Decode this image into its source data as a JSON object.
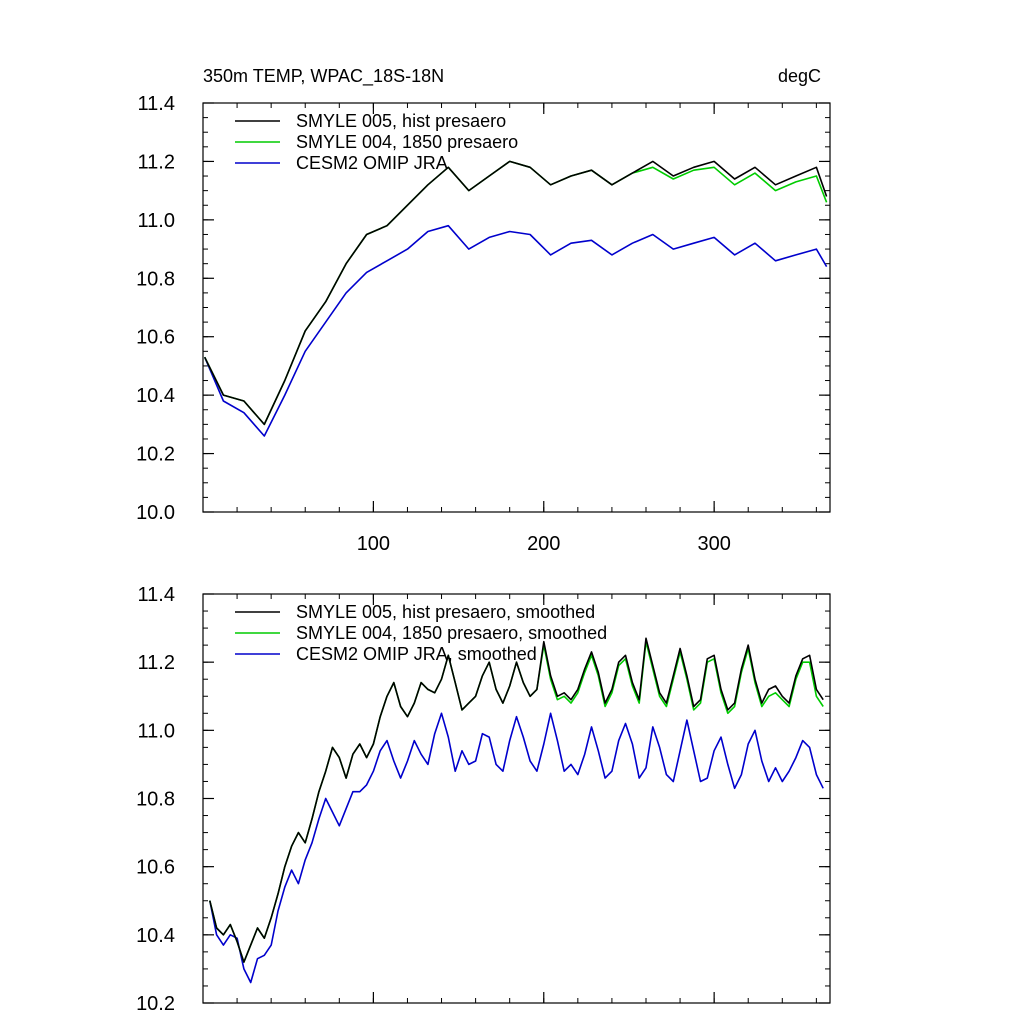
{
  "chart_data": [
    {
      "type": "line",
      "title": "350m TEMP, WPAC_18S-18N",
      "units": "degC",
      "xlabel": "",
      "ylabel": "",
      "xlim": [
        0,
        368
      ],
      "ylim": [
        10.0,
        11.4
      ],
      "x_ticks": [
        100,
        200,
        300
      ],
      "x_tick_labels": [
        "100",
        "200",
        "300"
      ],
      "y_ticks": [
        10.0,
        10.2,
        10.4,
        10.6,
        10.8,
        11.0,
        11.2,
        11.4
      ],
      "y_tick_labels": [
        "10.0",
        "10.2",
        "10.4",
        "10.6",
        "10.8",
        "11.0",
        "11.2",
        "11.4"
      ],
      "grid": false,
      "legend_position": "top-left",
      "x": [
        1,
        12,
        24,
        36,
        48,
        60,
        72,
        84,
        96,
        108,
        120,
        132,
        144,
        156,
        168,
        180,
        192,
        204,
        216,
        228,
        240,
        252,
        264,
        276,
        288,
        300,
        312,
        324,
        336,
        348,
        360,
        366
      ],
      "series": [
        {
          "name": "SMYLE 005, hist presaero",
          "color": "#000000",
          "values": [
            10.53,
            10.4,
            10.38,
            10.3,
            10.45,
            10.62,
            10.72,
            10.85,
            10.95,
            10.98,
            11.05,
            11.12,
            11.18,
            11.1,
            11.15,
            11.2,
            11.18,
            11.12,
            11.15,
            11.17,
            11.12,
            11.16,
            11.2,
            11.15,
            11.18,
            11.2,
            11.14,
            11.18,
            11.12,
            11.15,
            11.18,
            11.08
          ]
        },
        {
          "name": "SMYLE 004, 1850 presaero",
          "color": "#00cc00",
          "values": [
            10.53,
            10.4,
            10.38,
            10.3,
            10.45,
            10.62,
            10.72,
            10.85,
            10.95,
            10.98,
            11.05,
            11.12,
            11.18,
            11.1,
            11.15,
            11.2,
            11.18,
            11.12,
            11.15,
            11.17,
            11.12,
            11.16,
            11.18,
            11.14,
            11.17,
            11.18,
            11.12,
            11.16,
            11.1,
            11.13,
            11.15,
            11.06
          ]
        },
        {
          "name": "CESM2 OMIP JRA",
          "color": "#0000cc",
          "values": [
            10.53,
            10.38,
            10.34,
            10.26,
            10.4,
            10.55,
            10.65,
            10.75,
            10.82,
            10.86,
            10.9,
            10.96,
            10.98,
            10.9,
            10.94,
            10.96,
            10.95,
            10.88,
            10.92,
            10.93,
            10.88,
            10.92,
            10.95,
            10.9,
            10.92,
            10.94,
            10.88,
            10.92,
            10.86,
            10.88,
            10.9,
            10.84
          ]
        }
      ]
    },
    {
      "type": "line",
      "title": "",
      "units": "",
      "xlabel": "",
      "ylabel": "",
      "xlim": [
        0,
        368
      ],
      "ylim": [
        10.2,
        11.4
      ],
      "x_ticks": [
        100,
        200,
        300
      ],
      "x_tick_labels": [],
      "y_ticks": [
        10.2,
        10.4,
        10.6,
        10.8,
        11.0,
        11.2,
        11.4
      ],
      "y_tick_labels": [
        "10.2",
        "10.4",
        "10.6",
        "10.8",
        "11.0",
        "11.2",
        "11.4"
      ],
      "grid": false,
      "legend_position": "top-left",
      "x": [
        4,
        8,
        12,
        16,
        20,
        24,
        28,
        32,
        36,
        40,
        44,
        48,
        52,
        56,
        60,
        64,
        68,
        72,
        76,
        80,
        84,
        88,
        92,
        96,
        100,
        104,
        108,
        112,
        116,
        120,
        124,
        128,
        132,
        136,
        140,
        144,
        148,
        152,
        156,
        160,
        164,
        168,
        172,
        176,
        180,
        184,
        188,
        192,
        196,
        200,
        204,
        208,
        212,
        216,
        220,
        224,
        228,
        232,
        236,
        240,
        244,
        248,
        252,
        256,
        260,
        264,
        268,
        272,
        276,
        280,
        284,
        288,
        292,
        296,
        300,
        304,
        308,
        312,
        316,
        320,
        324,
        328,
        332,
        336,
        340,
        344,
        348,
        352,
        356,
        360,
        364
      ],
      "series": [
        {
          "name": "SMYLE 005, hist presaero, smoothed",
          "color": "#000000",
          "values": [
            10.5,
            10.42,
            10.4,
            10.43,
            10.38,
            10.32,
            10.37,
            10.42,
            10.39,
            10.45,
            10.52,
            10.6,
            10.66,
            10.7,
            10.67,
            10.74,
            10.82,
            10.88,
            10.95,
            10.92,
            10.86,
            10.93,
            10.96,
            10.92,
            10.96,
            11.04,
            11.1,
            11.14,
            11.07,
            11.04,
            11.08,
            11.14,
            11.12,
            11.11,
            11.15,
            11.22,
            11.14,
            11.06,
            11.08,
            11.1,
            11.16,
            11.2,
            11.12,
            11.08,
            11.13,
            11.2,
            11.14,
            11.1,
            11.12,
            11.26,
            11.16,
            11.1,
            11.11,
            11.09,
            11.12,
            11.18,
            11.23,
            11.17,
            11.08,
            11.12,
            11.2,
            11.22,
            11.14,
            11.09,
            11.27,
            11.19,
            11.11,
            11.08,
            11.16,
            11.24,
            11.16,
            11.07,
            11.09,
            11.21,
            11.22,
            11.12,
            11.06,
            11.08,
            11.18,
            11.25,
            11.15,
            11.08,
            11.12,
            11.13,
            11.1,
            11.08,
            11.16,
            11.21,
            11.22,
            11.12,
            11.09
          ]
        },
        {
          "name": "SMYLE 004, 1850 presaero, smoothed",
          "color": "#00cc00",
          "values": [
            10.5,
            10.42,
            10.4,
            10.43,
            10.38,
            10.32,
            10.37,
            10.42,
            10.39,
            10.45,
            10.52,
            10.6,
            10.66,
            10.7,
            10.67,
            10.74,
            10.82,
            10.88,
            10.95,
            10.92,
            10.86,
            10.93,
            10.96,
            10.92,
            10.96,
            11.04,
            11.1,
            11.14,
            11.07,
            11.04,
            11.08,
            11.14,
            11.12,
            11.11,
            11.15,
            11.22,
            11.14,
            11.06,
            11.08,
            11.1,
            11.16,
            11.2,
            11.12,
            11.08,
            11.13,
            11.2,
            11.14,
            11.1,
            11.12,
            11.25,
            11.15,
            11.09,
            11.1,
            11.08,
            11.11,
            11.17,
            11.22,
            11.16,
            11.07,
            11.11,
            11.19,
            11.21,
            11.13,
            11.08,
            11.26,
            11.18,
            11.1,
            11.07,
            11.15,
            11.23,
            11.15,
            11.06,
            11.08,
            11.2,
            11.21,
            11.11,
            11.05,
            11.07,
            11.17,
            11.24,
            11.14,
            11.07,
            11.1,
            11.11,
            11.09,
            11.07,
            11.15,
            11.2,
            11.2,
            11.1,
            11.07
          ]
        },
        {
          "name": "CESM2 OMIP JRA, smoothed",
          "color": "#0000cc",
          "values": [
            10.5,
            10.4,
            10.37,
            10.4,
            10.39,
            10.3,
            10.26,
            10.33,
            10.34,
            10.37,
            10.47,
            10.54,
            10.59,
            10.55,
            10.62,
            10.67,
            10.74,
            10.8,
            10.76,
            10.72,
            10.77,
            10.82,
            10.82,
            10.84,
            10.88,
            10.94,
            10.97,
            10.91,
            10.86,
            10.91,
            10.97,
            10.93,
            10.9,
            10.99,
            11.05,
            10.98,
            10.88,
            10.94,
            10.9,
            10.91,
            10.99,
            10.98,
            10.9,
            10.88,
            10.97,
            11.04,
            10.98,
            10.91,
            10.88,
            10.96,
            11.05,
            10.97,
            10.88,
            10.9,
            10.87,
            10.93,
            11.01,
            10.94,
            10.86,
            10.88,
            10.97,
            11.02,
            10.96,
            10.86,
            10.89,
            11.01,
            10.95,
            10.87,
            10.85,
            10.94,
            11.03,
            10.94,
            10.85,
            10.86,
            10.94,
            10.98,
            10.9,
            10.83,
            10.87,
            10.96,
            11.0,
            10.91,
            10.85,
            10.89,
            10.85,
            10.88,
            10.92,
            10.97,
            10.95,
            10.87,
            10.83
          ]
        }
      ]
    }
  ]
}
